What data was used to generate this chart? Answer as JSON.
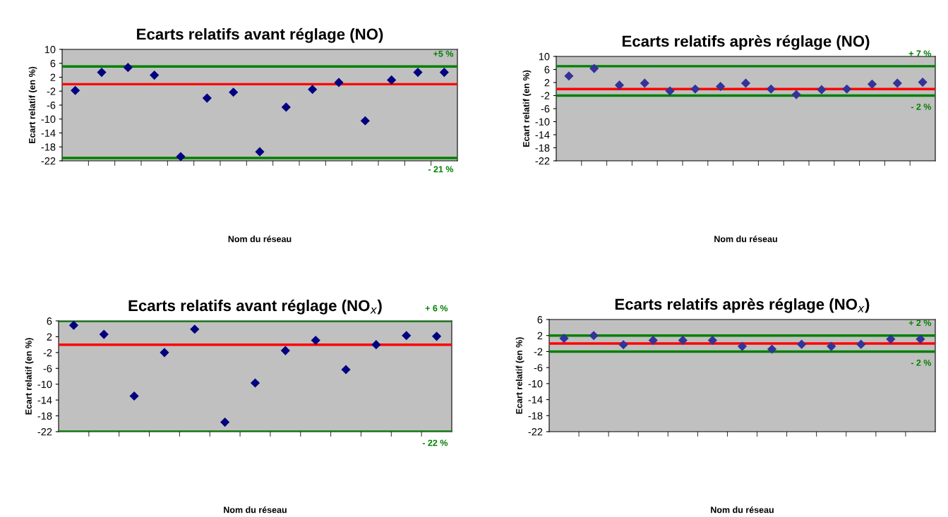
{
  "chart_data": [
    {
      "type": "scatter",
      "title": "Ecarts relatifs avant réglage (NO)",
      "xlabel": "Nom du réseau",
      "ylabel": "Ecart relatif (en %)",
      "categories": [
        null,
        null,
        null,
        null,
        null,
        null,
        null,
        null,
        null,
        null,
        null,
        null,
        null,
        null,
        null
      ],
      "series": [
        {
          "color": "#000080",
          "values": [
            -1.8,
            3.4,
            4.8,
            2.6,
            -20.8,
            -4.0,
            -2.3,
            -19.4,
            -6.6,
            -1.5,
            0.5,
            -10.5,
            1.2,
            3.4,
            3.4
          ]
        }
      ],
      "marker": "diamond",
      "ylim": [
        -22,
        10
      ],
      "yticks": [
        -22,
        -18,
        -14,
        -10,
        -6,
        -2,
        2,
        6,
        10
      ],
      "grid": false,
      "legend": false,
      "ref_lines": [
        {
          "axis": "y",
          "value": 0,
          "color": "#ff0000"
        },
        {
          "axis": "y",
          "value": 5.1,
          "label": "+5 %",
          "color": "#008000"
        },
        {
          "axis": "y",
          "value": -21.2,
          "label": "- 21 %",
          "color": "#008000"
        }
      ]
    },
    {
      "type": "scatter",
      "title": "Ecarts relatifs après réglage (NO)",
      "xlabel": "Nom du réseau",
      "ylabel": "Ecart relatif (en %)",
      "categories": [
        null,
        null,
        null,
        null,
        null,
        null,
        null,
        null,
        null,
        null,
        null,
        null,
        null,
        null,
        null
      ],
      "series": [
        {
          "color": "#333399",
          "values": [
            4.0,
            6.3,
            1.2,
            1.8,
            -0.6,
            0.0,
            0.8,
            1.8,
            0.0,
            -1.7,
            -0.2,
            0.0,
            1.5,
            1.8,
            2.1
          ]
        }
      ],
      "marker": "diamond",
      "ylim": [
        -22,
        10
      ],
      "yticks": [
        -22,
        -18,
        -14,
        -10,
        -6,
        -2,
        2,
        6,
        10
      ],
      "grid": false,
      "legend": false,
      "ref_lines": [
        {
          "axis": "y",
          "value": 0,
          "color": "#ff0000"
        },
        {
          "axis": "y",
          "value": 7,
          "label": "+ 7 %",
          "color": "#008000"
        },
        {
          "axis": "y",
          "value": -2,
          "label": "- 2 %",
          "color": "#008000"
        }
      ]
    },
    {
      "type": "scatter",
      "title": "Ecarts relatifs avant réglage (NO$_{x}$)",
      "xlabel": "Nom du réseau",
      "ylabel": "Ecart relatif (en %)",
      "categories": [
        null,
        null,
        null,
        null,
        null,
        null,
        null,
        null,
        null,
        null,
        null,
        null,
        null
      ],
      "series": [
        {
          "color": "#000080",
          "values": [
            4.9,
            2.6,
            -13.0,
            -2.0,
            3.9,
            -19.6,
            -9.7,
            -1.5,
            1.1,
            -6.3,
            0.0,
            2.3,
            2.1
          ]
        }
      ],
      "marker": "diamond",
      "ylim": [
        -22,
        6
      ],
      "yticks": [
        -22,
        -18,
        -14,
        -10,
        -6,
        -2,
        2,
        6
      ],
      "grid": false,
      "legend": false,
      "ref_lines": [
        {
          "axis": "y",
          "value": 0,
          "color": "#ff0000"
        },
        {
          "axis": "y",
          "value": 6,
          "label": "+ 6 %",
          "color": "#008000"
        },
        {
          "axis": "y",
          "value": -22,
          "label": "- 22 %",
          "color": "#008000"
        }
      ]
    },
    {
      "type": "scatter",
      "title": "Ecarts relatifs après réglage (NO$_{x}$)",
      "xlabel": "Nom du réseau",
      "ylabel": "Ecart relatif (en %)",
      "categories": [
        null,
        null,
        null,
        null,
        null,
        null,
        null,
        null,
        null,
        null,
        null,
        null,
        null
      ],
      "series": [
        {
          "color": "#333399",
          "values": [
            1.3,
            2.0,
            -0.3,
            0.8,
            0.8,
            0.8,
            -0.7,
            -1.4,
            -0.2,
            -0.7,
            -0.2,
            1.1,
            1.1
          ]
        }
      ],
      "marker": "diamond",
      "ylim": [
        -22,
        6
      ],
      "yticks": [
        -22,
        -18,
        -14,
        -10,
        -6,
        -2,
        2,
        6
      ],
      "grid": false,
      "legend": false,
      "ref_lines": [
        {
          "axis": "y",
          "value": 0,
          "color": "#ff0000"
        },
        {
          "axis": "y",
          "value": 2,
          "label": "+ 2 %",
          "color": "#008000"
        },
        {
          "axis": "y",
          "value": -2,
          "label": "- 2 %",
          "color": "#008000"
        }
      ]
    }
  ]
}
